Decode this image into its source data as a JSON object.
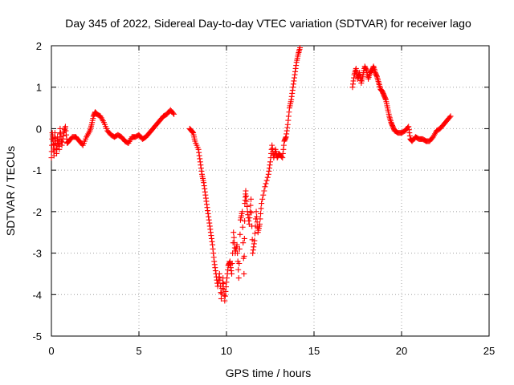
{
  "chart_data": {
    "type": "scatter",
    "title": "Day 345 of 2022, Sidereal Day-to-day VTEC variation (SDTVAR) for receiver lago",
    "xlabel": "GPS time / hours",
    "ylabel": "SDTVAR / TECUs",
    "xlim": [
      0,
      25
    ],
    "ylim": [
      -5,
      2
    ],
    "xticks": [
      0,
      5,
      10,
      15,
      20,
      25
    ],
    "yticks": [
      -5,
      -4,
      -3,
      -2,
      -1,
      0,
      1,
      2
    ],
    "grid": true,
    "marker": "+",
    "color": "#ff0000",
    "series": [
      {
        "name": "SDTVAR",
        "segments": [
          [
            [
              0.0,
              -0.7
            ],
            [
              0.05,
              -0.1
            ],
            [
              0.1,
              -0.3
            ],
            [
              0.15,
              -0.65
            ],
            [
              0.2,
              -0.1
            ],
            [
              0.3,
              -0.6
            ],
            [
              0.35,
              -0.2
            ],
            [
              0.45,
              -0.5
            ],
            [
              0.5,
              0.0
            ],
            [
              0.6,
              -0.4
            ],
            [
              0.7,
              -0.1
            ],
            [
              0.8,
              0.05
            ],
            [
              0.9,
              -0.35
            ],
            [
              1.0,
              -0.3
            ],
            [
              1.2,
              -0.2
            ],
            [
              1.4,
              -0.2
            ],
            [
              1.6,
              -0.3
            ],
            [
              1.8,
              -0.4
            ],
            [
              2.0,
              -0.2
            ],
            [
              2.2,
              -0.05
            ],
            [
              2.3,
              0.1
            ],
            [
              2.4,
              0.3
            ],
            [
              2.5,
              0.4
            ],
            [
              2.6,
              0.35
            ],
            [
              2.8,
              0.3
            ],
            [
              3.0,
              0.15
            ],
            [
              3.2,
              -0.05
            ],
            [
              3.4,
              -0.15
            ],
            [
              3.6,
              -0.2
            ],
            [
              3.8,
              -0.15
            ],
            [
              4.0,
              -0.2
            ],
            [
              4.2,
              -0.3
            ],
            [
              4.4,
              -0.35
            ],
            [
              4.6,
              -0.2
            ],
            [
              4.8,
              -0.2
            ],
            [
              5.0,
              -0.15
            ],
            [
              5.2,
              -0.25
            ],
            [
              5.4,
              -0.2
            ],
            [
              5.6,
              -0.1
            ],
            [
              5.8,
              0.0
            ],
            [
              6.0,
              0.1
            ],
            [
              6.2,
              0.2
            ],
            [
              6.4,
              0.3
            ],
            [
              6.6,
              0.35
            ],
            [
              6.8,
              0.45
            ],
            [
              7.0,
              0.35
            ]
          ],
          [
            [
              7.9,
              0.0
            ],
            [
              8.0,
              -0.05
            ],
            [
              8.1,
              -0.1
            ],
            [
              8.2,
              -0.3
            ],
            [
              8.4,
              -0.5
            ],
            [
              8.5,
              -0.8
            ],
            [
              8.6,
              -1.1
            ],
            [
              8.7,
              -1.3
            ],
            [
              8.8,
              -1.6
            ],
            [
              8.9,
              -1.9
            ],
            [
              9.0,
              -2.2
            ],
            [
              9.1,
              -2.5
            ],
            [
              9.2,
              -2.8
            ],
            [
              9.3,
              -3.2
            ],
            [
              9.4,
              -3.5
            ],
            [
              9.5,
              -3.8
            ],
            [
              9.6,
              -3.5
            ],
            [
              9.7,
              -4.1
            ],
            [
              9.8,
              -3.6
            ],
            [
              9.9,
              -4.15
            ],
            [
              10.0,
              -3.7
            ],
            [
              10.1,
              -3.3
            ],
            [
              10.2,
              -3.2
            ],
            [
              10.3,
              -3.5
            ],
            [
              10.4,
              -2.5
            ],
            [
              10.5,
              -3.0
            ],
            [
              10.6,
              -2.8
            ],
            [
              10.7,
              -3.6
            ],
            [
              10.8,
              -2.2
            ],
            [
              10.9,
              -2.0
            ],
            [
              11.0,
              -3.5
            ],
            [
              11.05,
              -1.8
            ],
            [
              11.1,
              -1.5
            ],
            [
              11.2,
              -2.0
            ],
            [
              11.3,
              -2.3
            ],
            [
              11.4,
              -1.7
            ],
            [
              11.5,
              -3.0
            ],
            [
              11.6,
              -2.7
            ],
            [
              11.7,
              -2.0
            ],
            [
              11.8,
              -2.5
            ],
            [
              11.9,
              -2.3
            ],
            [
              12.0,
              -1.8
            ],
            [
              12.2,
              -1.4
            ],
            [
              12.4,
              -1.1
            ],
            [
              12.5,
              -0.8
            ],
            [
              12.6,
              -0.4
            ],
            [
              12.7,
              -0.7
            ],
            [
              12.8,
              -0.5
            ],
            [
              12.9,
              -0.7
            ],
            [
              13.0,
              -0.6
            ],
            [
              13.2,
              -0.7
            ],
            [
              13.3,
              -0.3
            ],
            [
              13.4,
              -0.2
            ],
            [
              13.5,
              0.1
            ],
            [
              13.6,
              0.5
            ],
            [
              13.7,
              0.7
            ],
            [
              13.8,
              1.0
            ],
            [
              13.9,
              1.3
            ],
            [
              14.0,
              1.6
            ],
            [
              14.1,
              1.8
            ],
            [
              14.2,
              1.95
            ]
          ],
          [
            [
              17.2,
              1.0
            ],
            [
              17.3,
              1.3
            ],
            [
              17.4,
              1.45
            ],
            [
              17.5,
              1.2
            ],
            [
              17.6,
              1.35
            ],
            [
              17.7,
              1.1
            ],
            [
              17.8,
              1.3
            ],
            [
              17.9,
              1.5
            ],
            [
              18.0,
              1.4
            ],
            [
              18.1,
              1.2
            ],
            [
              18.2,
              1.35
            ],
            [
              18.3,
              1.4
            ],
            [
              18.4,
              1.5
            ],
            [
              18.5,
              1.35
            ],
            [
              18.6,
              1.25
            ],
            [
              18.7,
              1.1
            ],
            [
              18.8,
              0.95
            ],
            [
              18.9,
              0.9
            ],
            [
              19.0,
              0.8
            ],
            [
              19.1,
              0.7
            ],
            [
              19.2,
              0.5
            ],
            [
              19.3,
              0.3
            ],
            [
              19.4,
              0.15
            ],
            [
              19.5,
              0.05
            ],
            [
              19.6,
              -0.05
            ],
            [
              19.8,
              -0.1
            ],
            [
              20.0,
              -0.1
            ],
            [
              20.2,
              -0.05
            ],
            [
              20.4,
              0.05
            ],
            [
              20.5,
              -0.25
            ],
            [
              20.6,
              -0.3
            ],
            [
              20.8,
              -0.2
            ],
            [
              21.0,
              -0.25
            ],
            [
              21.2,
              -0.25
            ],
            [
              21.4,
              -0.3
            ],
            [
              21.6,
              -0.3
            ],
            [
              21.8,
              -0.2
            ],
            [
              22.0,
              -0.05
            ],
            [
              22.2,
              0.0
            ],
            [
              22.4,
              0.1
            ],
            [
              22.6,
              0.2
            ],
            [
              22.8,
              0.3
            ]
          ]
        ]
      }
    ]
  }
}
